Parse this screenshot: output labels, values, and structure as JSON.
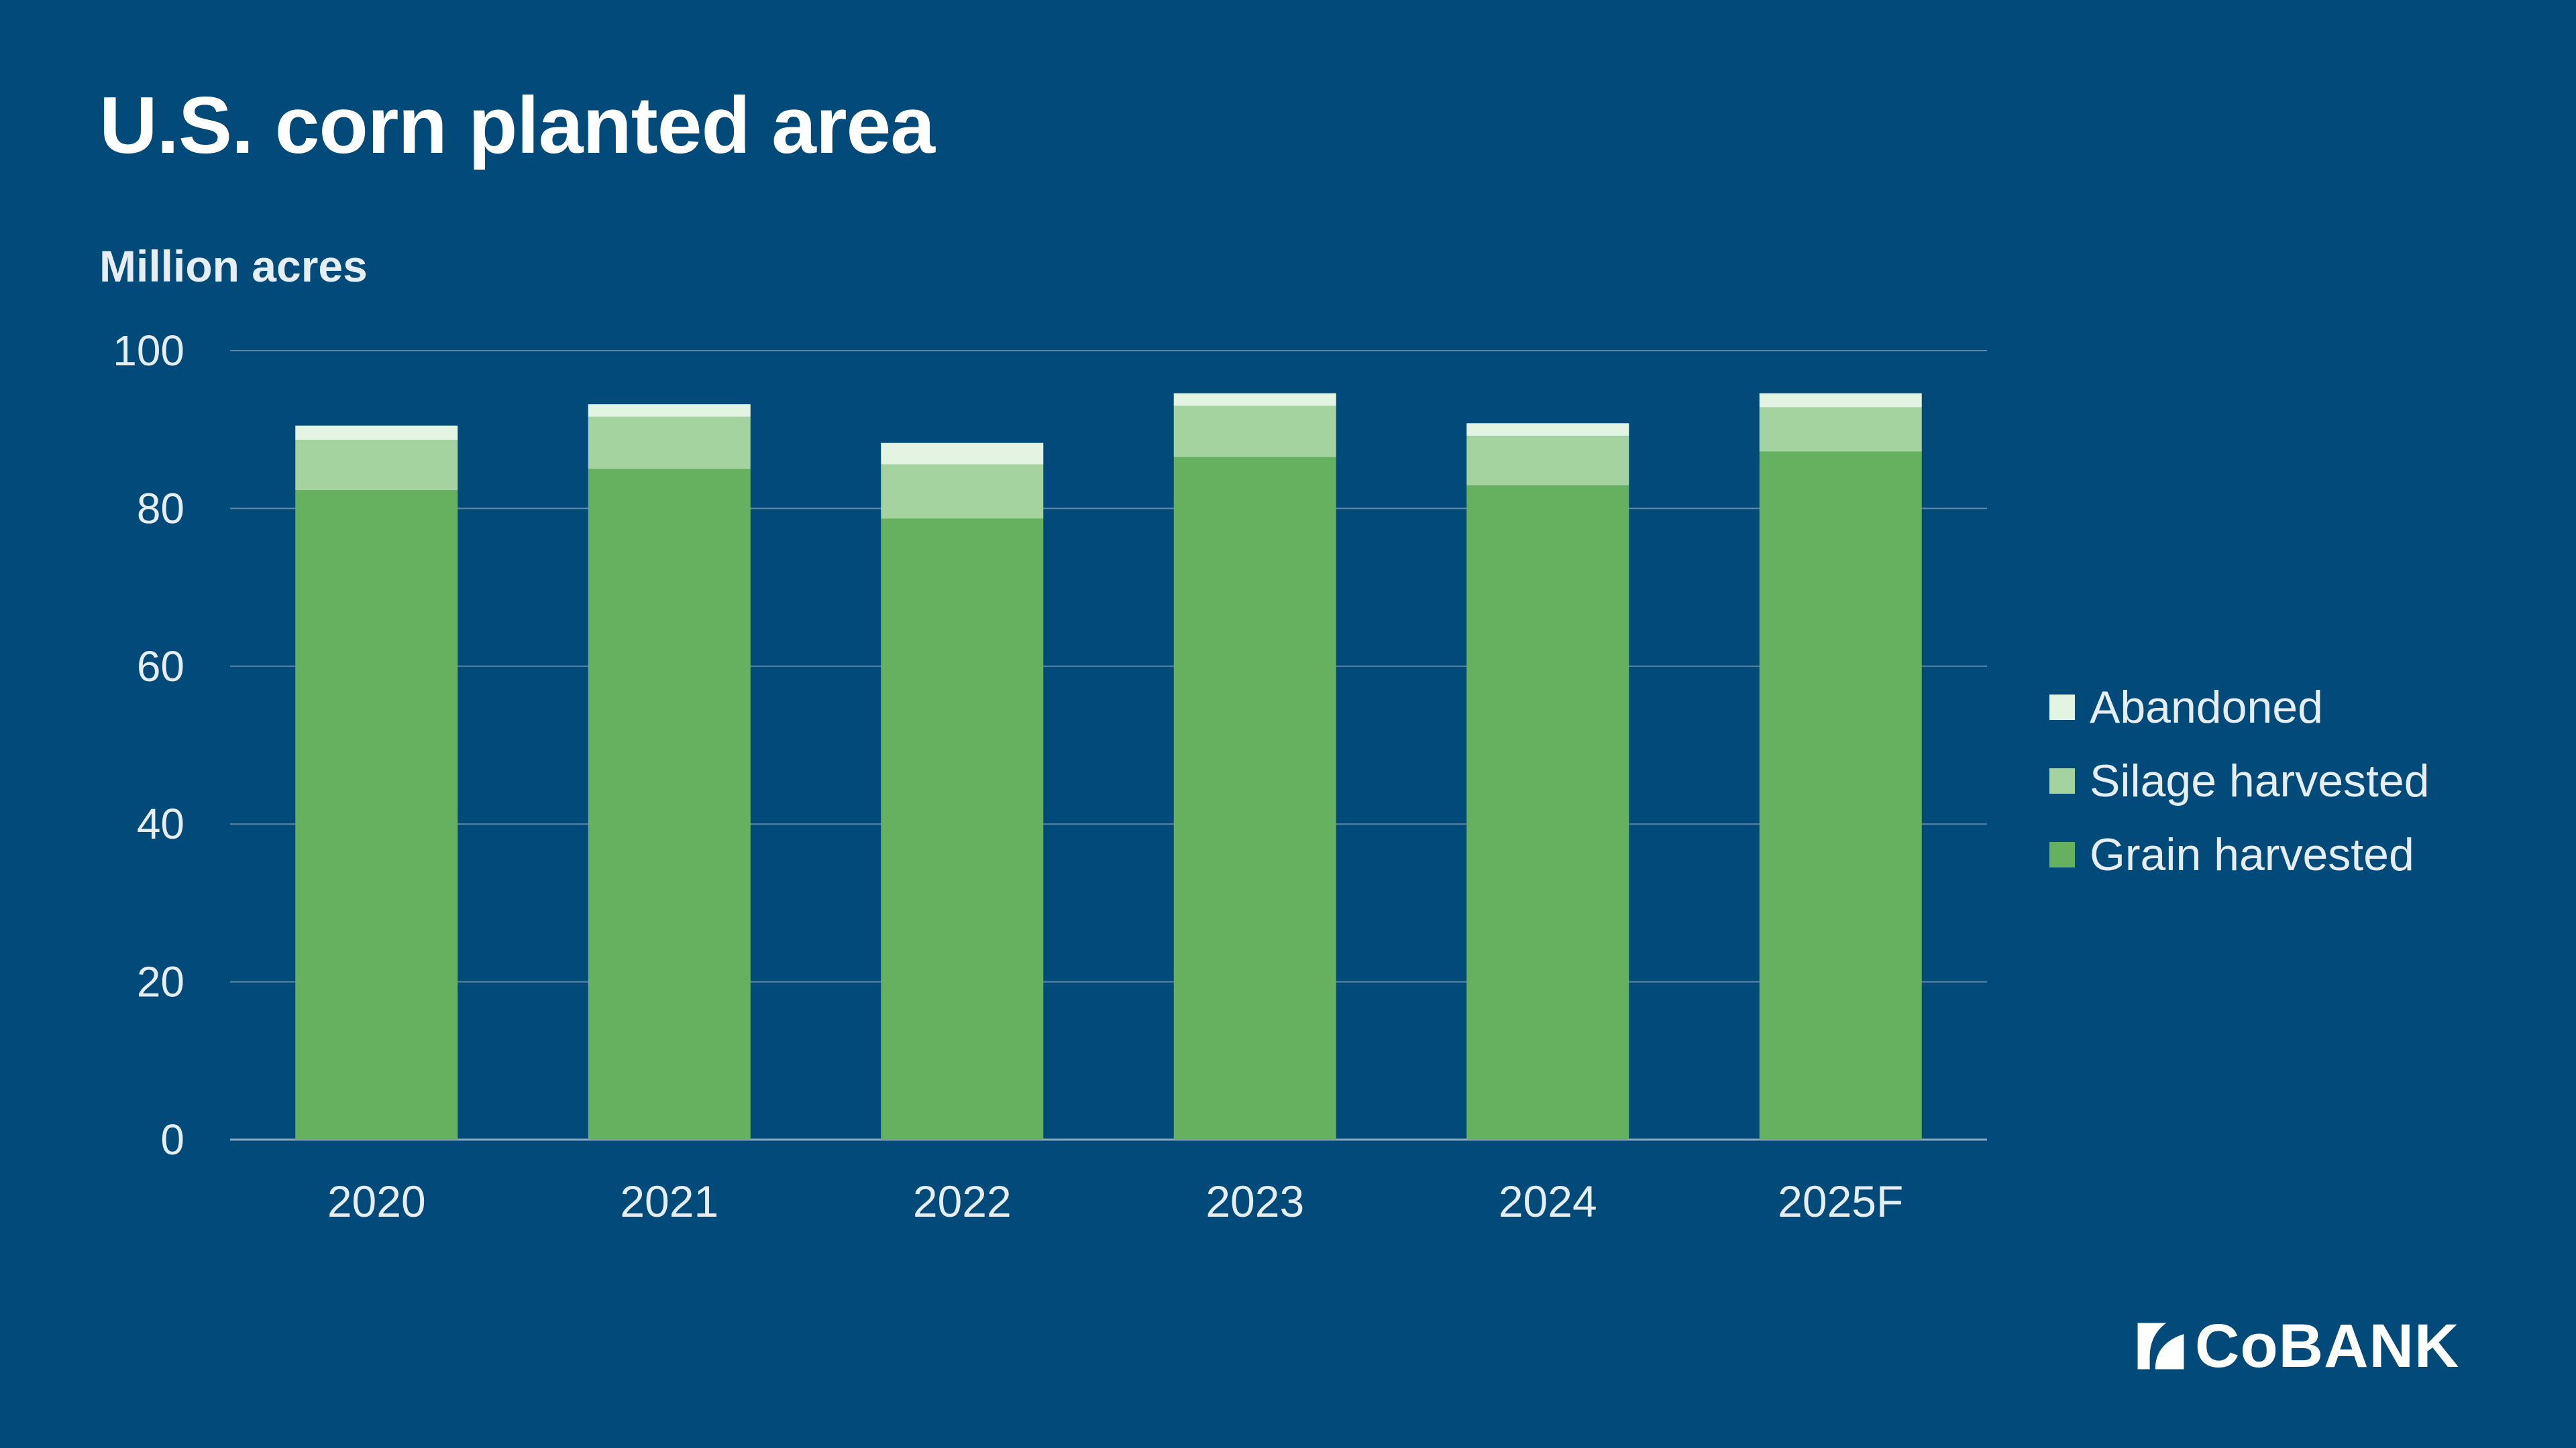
{
  "chart_data": {
    "type": "bar",
    "stacked": true,
    "title": "U.S. corn planted area",
    "ylabel": "Million acres",
    "xlabel": "",
    "ylim": [
      0,
      100
    ],
    "yticks": [
      0,
      20,
      40,
      60,
      80,
      100
    ],
    "grid": true,
    "legend_position": "right",
    "categories": [
      "2020",
      "2021",
      "2022",
      "2023",
      "2024",
      "2025F"
    ],
    "series": [
      {
        "name": "Grain harvested",
        "color": "#66b160",
        "values": [
          82.3,
          85.0,
          78.7,
          86.5,
          82.9,
          87.2
        ]
      },
      {
        "name": "Silage harvested",
        "color": "#a4d3a0",
        "values": [
          6.4,
          6.6,
          6.9,
          6.5,
          6.3,
          5.6
        ]
      },
      {
        "name": "Abandoned",
        "color": "#e4f4e2",
        "values": [
          1.8,
          1.6,
          2.7,
          1.6,
          1.6,
          1.8
        ]
      }
    ],
    "legend_order": [
      "Abandoned",
      "Silage harvested",
      "Grain harvested"
    ]
  },
  "brand": {
    "logo_text": "CoBANK",
    "background_color": "#024a79",
    "axis_text_color": "#e6edf3",
    "gridline_color": "#5f86a6"
  }
}
